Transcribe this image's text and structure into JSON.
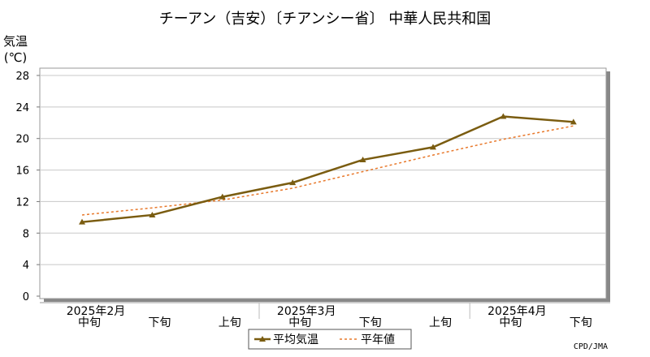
{
  "chart_data": {
    "type": "line",
    "title": "チーアン（吉安）〔チアンシー省〕 中華人民共和国",
    "ylabel": "気温",
    "yunit": "(℃)",
    "ylim": [
      0,
      28
    ],
    "yticks": [
      0,
      4,
      8,
      12,
      16,
      20,
      24,
      28
    ],
    "categories": [
      "中旬",
      "下旬",
      "上旬",
      "中旬",
      "下旬",
      "上旬",
      "中旬",
      "下旬"
    ],
    "months": [
      {
        "label": "2025年2月",
        "index": 0
      },
      {
        "label": "2025年3月",
        "index": 3
      },
      {
        "label": "2025年4月",
        "index": 6
      }
    ],
    "series": [
      {
        "name": "平均気温",
        "values": [
          9.4,
          10.3,
          12.6,
          14.4,
          17.3,
          18.9,
          22.8,
          22.1
        ],
        "color": "#7a5c10",
        "style": "solid-marker"
      },
      {
        "name": "平年値",
        "values": [
          10.3,
          11.2,
          12.2,
          13.7,
          15.8,
          17.9,
          19.9,
          21.6
        ],
        "color": "#e8782a",
        "style": "dashed"
      }
    ],
    "grid": true,
    "legend": "bottom-center"
  },
  "footer": {
    "credit": "CPD/JMA"
  }
}
